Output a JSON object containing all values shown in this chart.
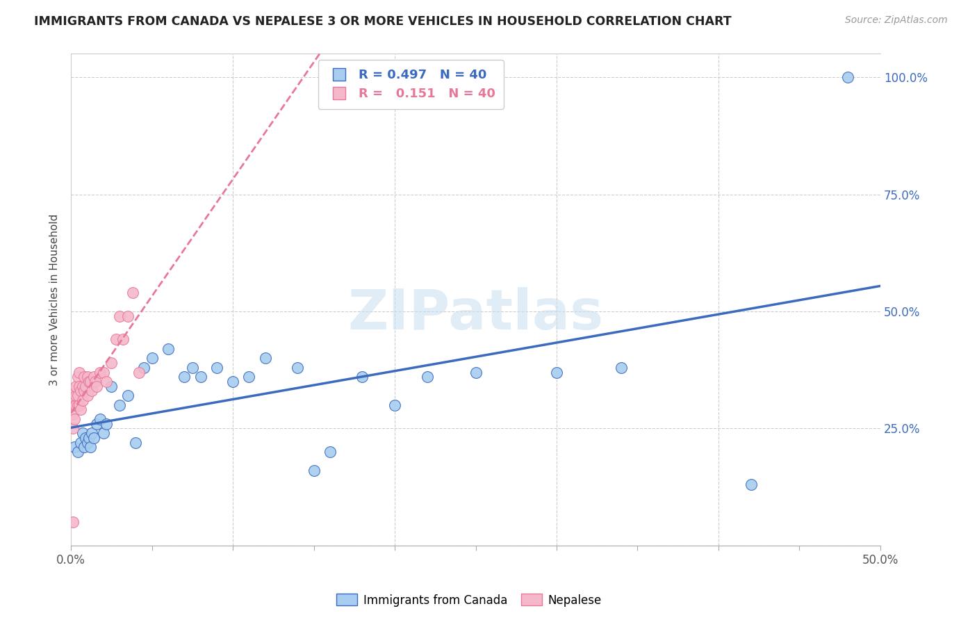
{
  "title": "IMMIGRANTS FROM CANADA VS NEPALESE 3 OR MORE VEHICLES IN HOUSEHOLD CORRELATION CHART",
  "source": "Source: ZipAtlas.com",
  "ylabel": "3 or more Vehicles in Household",
  "legend_label1": "Immigrants from Canada",
  "legend_label2": "Nepalese",
  "R1": 0.497,
  "N1": 40,
  "R2": 0.151,
  "N2": 40,
  "xlim": [
    0.0,
    0.5
  ],
  "ylim": [
    0.0,
    1.05
  ],
  "xtick_labeled": [
    0.0,
    0.5
  ],
  "xtick_grid": [
    0.0,
    0.1,
    0.2,
    0.3,
    0.4,
    0.5
  ],
  "yticks": [
    0.25,
    0.5,
    0.75,
    1.0
  ],
  "color_canada": "#a8cdf0",
  "color_nepal": "#f5b8cb",
  "color_line_canada": "#3b6abf",
  "color_line_nepal": "#e87898",
  "watermark": "ZIPatlas",
  "canada_x": [
    0.002,
    0.004,
    0.006,
    0.007,
    0.008,
    0.009,
    0.01,
    0.011,
    0.012,
    0.013,
    0.014,
    0.016,
    0.018,
    0.02,
    0.022,
    0.025,
    0.03,
    0.035,
    0.04,
    0.045,
    0.05,
    0.06,
    0.07,
    0.075,
    0.08,
    0.09,
    0.1,
    0.11,
    0.12,
    0.14,
    0.15,
    0.16,
    0.18,
    0.2,
    0.22,
    0.25,
    0.3,
    0.34,
    0.42,
    0.48
  ],
  "canada_y": [
    0.21,
    0.2,
    0.22,
    0.24,
    0.21,
    0.23,
    0.22,
    0.23,
    0.21,
    0.24,
    0.23,
    0.26,
    0.27,
    0.24,
    0.26,
    0.34,
    0.3,
    0.32,
    0.22,
    0.38,
    0.4,
    0.42,
    0.36,
    0.38,
    0.36,
    0.38,
    0.35,
    0.36,
    0.4,
    0.38,
    0.16,
    0.2,
    0.36,
    0.3,
    0.36,
    0.37,
    0.37,
    0.38,
    0.13,
    1.0
  ],
  "nepal_x": [
    0.001,
    0.001,
    0.001,
    0.002,
    0.002,
    0.002,
    0.003,
    0.003,
    0.003,
    0.004,
    0.004,
    0.004,
    0.005,
    0.005,
    0.005,
    0.006,
    0.006,
    0.007,
    0.007,
    0.008,
    0.008,
    0.009,
    0.01,
    0.01,
    0.011,
    0.012,
    0.013,
    0.014,
    0.015,
    0.016,
    0.018,
    0.02,
    0.022,
    0.025,
    0.028,
    0.03,
    0.032,
    0.035,
    0.038,
    0.042
  ],
  "nepal_y": [
    0.05,
    0.25,
    0.28,
    0.27,
    0.3,
    0.33,
    0.3,
    0.32,
    0.34,
    0.3,
    0.32,
    0.36,
    0.3,
    0.34,
    0.37,
    0.29,
    0.33,
    0.31,
    0.34,
    0.33,
    0.36,
    0.34,
    0.32,
    0.36,
    0.35,
    0.35,
    0.33,
    0.36,
    0.35,
    0.34,
    0.37,
    0.37,
    0.35,
    0.39,
    0.44,
    0.49,
    0.44,
    0.49,
    0.54,
    0.37
  ]
}
